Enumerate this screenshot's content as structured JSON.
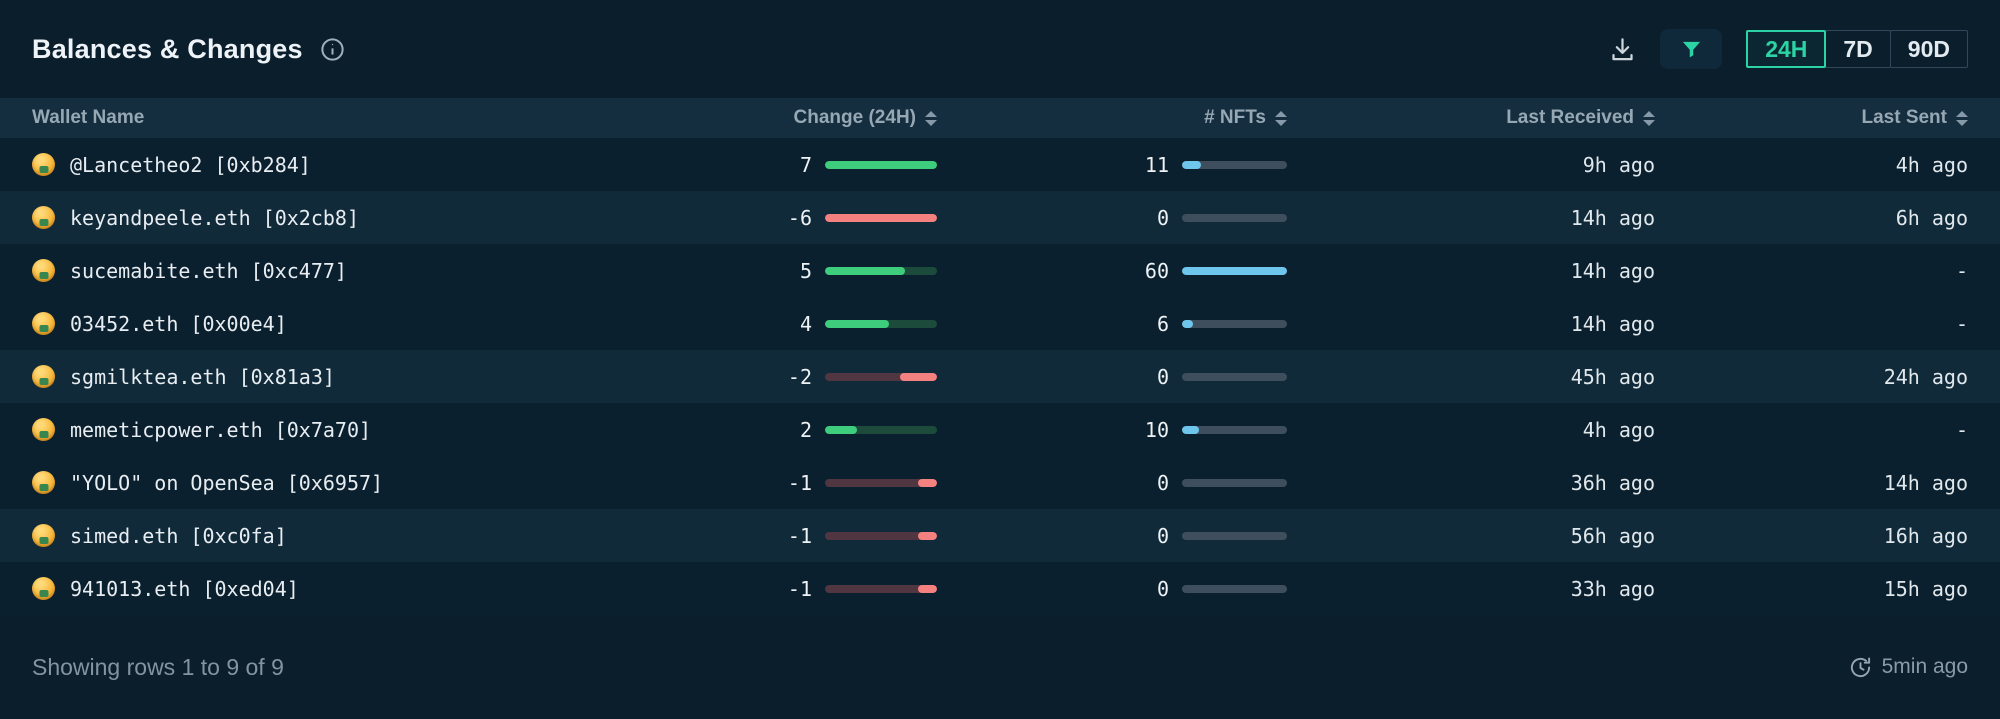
{
  "colors": {
    "accent_teal": "#2bd3a5",
    "positive_green": "#3ecd7d",
    "positive_track": "#1d4b3b",
    "negative_red": "#f48080",
    "negative_track": "#503641",
    "nft_blue": "#6ec6ec",
    "nft_track": "#3e4e5c"
  },
  "header": {
    "title": "Balances & Changes",
    "icons": {
      "info": "info-icon",
      "download": "download-icon",
      "filter": "filter-icon",
      "sort": "sort-icon",
      "refresh": "refresh-clock-icon",
      "wallet_avatar": "money-face-emoji-icon"
    },
    "timeframes": [
      {
        "label": "24H",
        "active": true
      },
      {
        "label": "7D",
        "active": false
      },
      {
        "label": "90D",
        "active": false
      }
    ]
  },
  "table": {
    "columns": {
      "wallet": "Wallet Name",
      "change": "Change (24H)",
      "nfts": "# NFTs",
      "last_received": "Last Received",
      "last_sent": "Last Sent"
    },
    "change_scale": {
      "positive_max": 7,
      "negative_max": 6
    },
    "nft_scale_max": 60,
    "rows": [
      {
        "wallet": "@Lancetheo2 [0xb284]",
        "change": 7,
        "nfts": 11,
        "last_received": "9h ago",
        "last_sent": "4h ago"
      },
      {
        "wallet": "keyandpeele.eth [0x2cb8]",
        "change": -6,
        "nfts": 0,
        "last_received": "14h ago",
        "last_sent": "6h ago"
      },
      {
        "wallet": "sucemabite.eth [0xc477]",
        "change": 5,
        "nfts": 60,
        "last_received": "14h ago",
        "last_sent": "-"
      },
      {
        "wallet": "03452.eth [0x00e4]",
        "change": 4,
        "nfts": 6,
        "last_received": "14h ago",
        "last_sent": "-"
      },
      {
        "wallet": "sgmilktea.eth [0x81a3]",
        "change": -2,
        "nfts": 0,
        "last_received": "45h ago",
        "last_sent": "24h ago"
      },
      {
        "wallet": "memeticpower.eth [0x7a70]",
        "change": 2,
        "nfts": 10,
        "last_received": "4h ago",
        "last_sent": "-"
      },
      {
        "wallet": "\"YOLO\" on OpenSea [0x6957]",
        "change": -1,
        "nfts": 0,
        "last_received": "36h ago",
        "last_sent": "14h ago"
      },
      {
        "wallet": "simed.eth [0xc0fa]",
        "change": -1,
        "nfts": 0,
        "last_received": "56h ago",
        "last_sent": "16h ago"
      },
      {
        "wallet": "941013.eth [0xed04]",
        "change": -1,
        "nfts": 0,
        "last_received": "33h ago",
        "last_sent": "15h ago"
      }
    ]
  },
  "footer": {
    "summary": "Showing rows 1 to 9 of 9",
    "last_updated": "5min ago"
  }
}
